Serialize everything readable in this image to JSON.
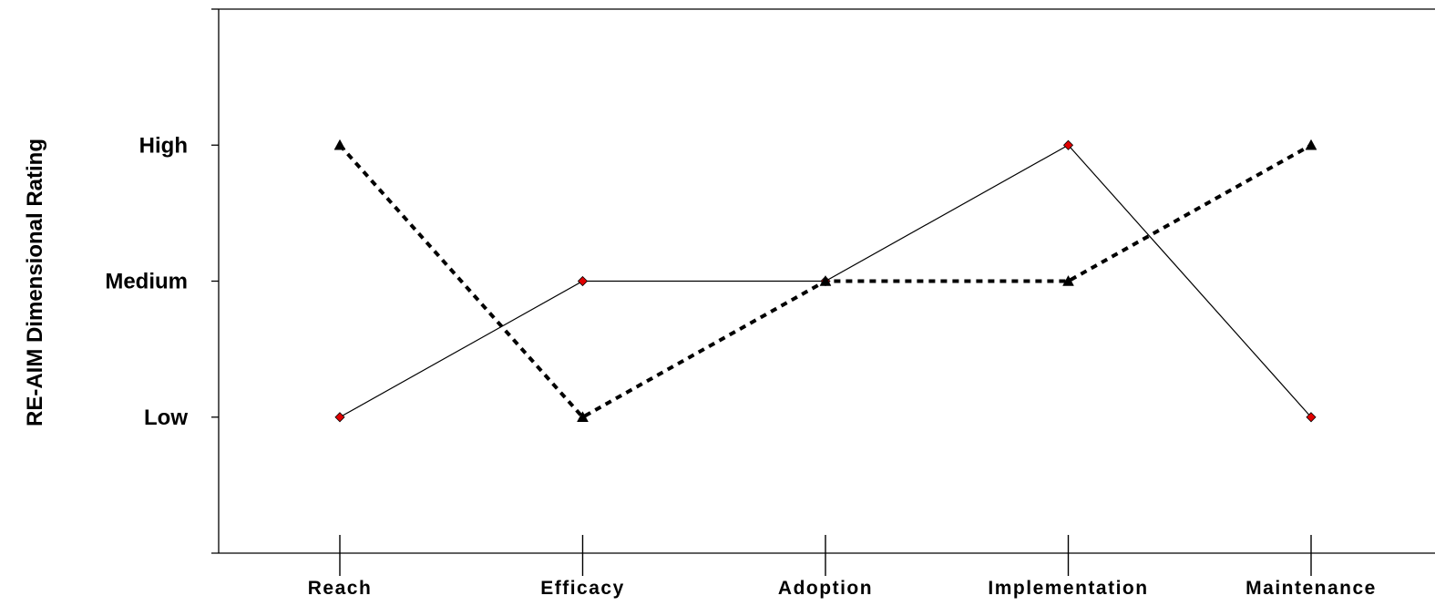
{
  "chart_data": {
    "type": "line",
    "categories": [
      "Reach",
      "Efficacy",
      "Adoption",
      "Implementation",
      "Maintenance"
    ],
    "ylabel": "RE-AIM Dimensional Rating",
    "xlabel": "",
    "y_tick_labels": [
      "Low",
      "Medium",
      "High"
    ],
    "y_tick_values": [
      1,
      2,
      3
    ],
    "ylim": [
      0,
      4
    ],
    "grid": false,
    "legend": "none",
    "series": [
      {
        "values": [
          1,
          2,
          2,
          3,
          1
        ],
        "line_style": "solid",
        "line_color": "#000000",
        "marker": "diamond",
        "marker_color": "#e00000"
      },
      {
        "values": [
          3,
          1,
          2,
          2,
          3
        ],
        "line_style": "dashed",
        "line_color": "#000000",
        "marker": "triangle",
        "marker_color": "#000000"
      }
    ]
  }
}
